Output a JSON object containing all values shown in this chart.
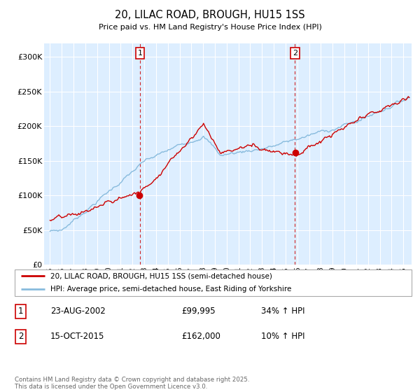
{
  "title": "20, LILAC ROAD, BROUGH, HU15 1SS",
  "subtitle": "Price paid vs. HM Land Registry's House Price Index (HPI)",
  "property_line_color": "#cc0000",
  "hpi_line_color": "#88bbdd",
  "vline_color": "#cc0000",
  "background_color": "#ddeeff",
  "ylim": [
    0,
    320000
  ],
  "yticks": [
    0,
    50000,
    100000,
    150000,
    200000,
    250000,
    300000
  ],
  "ytick_labels": [
    "£0",
    "£50K",
    "£100K",
    "£150K",
    "£200K",
    "£250K",
    "£300K"
  ],
  "sale1_x": 2002.645,
  "sale1_y": 99995,
  "sale2_x": 2015.79,
  "sale2_y": 162000,
  "sale1_date": "23-AUG-2002",
  "sale1_price": "£99,995",
  "sale1_hpi": "34% ↑ HPI",
  "sale2_date": "15-OCT-2015",
  "sale2_price": "£162,000",
  "sale2_hpi": "10% ↑ HPI",
  "legend_property": "20, LILAC ROAD, BROUGH, HU15 1SS (semi-detached house)",
  "legend_hpi": "HPI: Average price, semi-detached house, East Riding of Yorkshire",
  "footer": "Contains HM Land Registry data © Crown copyright and database right 2025.\nThis data is licensed under the Open Government Licence v3.0.",
  "xlim_left": 1994.5,
  "xlim_right": 2025.7
}
